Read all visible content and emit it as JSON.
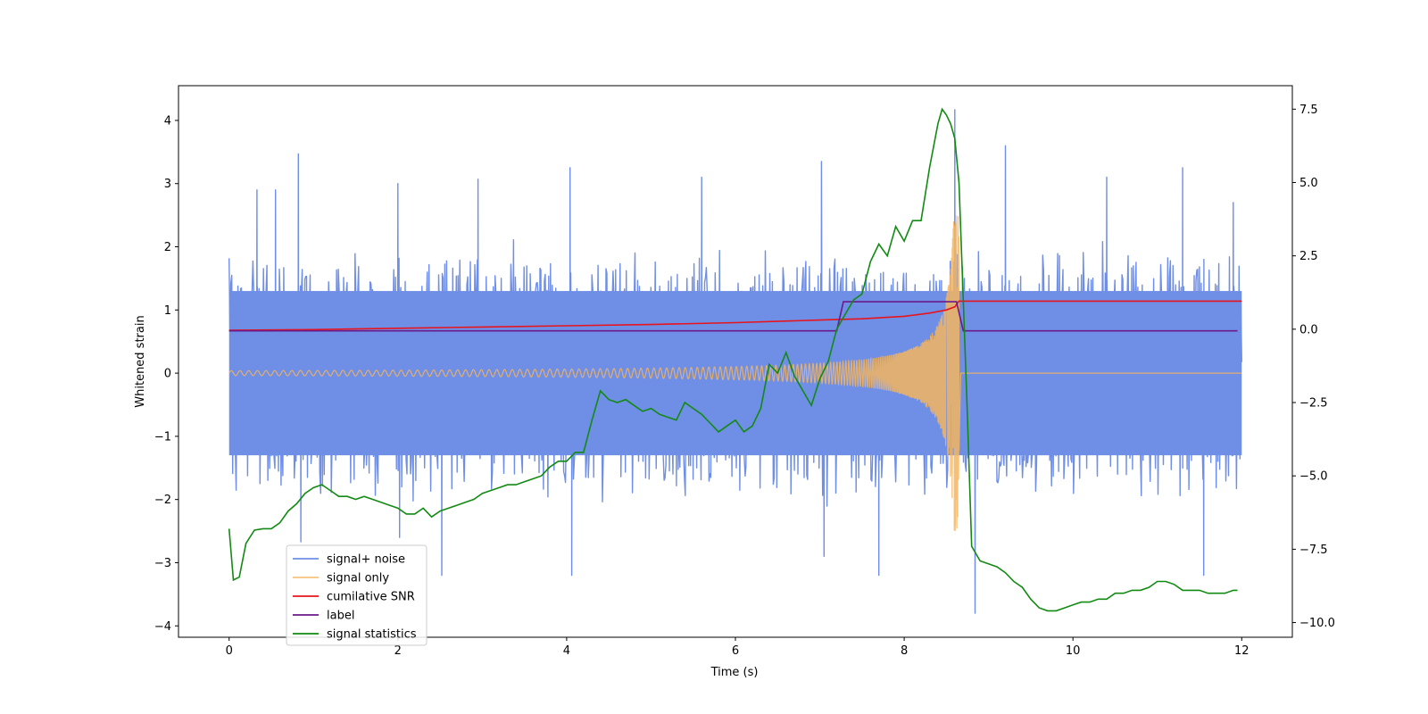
{
  "chart_data": {
    "type": "line",
    "title": "",
    "xlabel": "Time (s)",
    "ylabel": "Whitened strain",
    "ylabel_right": "",
    "xlim": [
      -0.6,
      12.6
    ],
    "ylim": [
      -4.18,
      4.55
    ],
    "ylim_right": [
      -10.5,
      8.3
    ],
    "x_ticks": [
      0,
      2,
      4,
      6,
      8,
      10,
      12
    ],
    "x_tick_labels": [
      "0",
      "2",
      "4",
      "6",
      "8",
      "10",
      "12"
    ],
    "y_ticks": [
      -4,
      -3,
      -2,
      -1,
      0,
      1,
      2,
      3,
      4
    ],
    "y_tick_labels": [
      "−4",
      "−3",
      "−2",
      "−1",
      "0",
      "1",
      "2",
      "3",
      "4"
    ],
    "y_ticks_right": [
      -10,
      -7.5,
      -5,
      -2.5,
      0,
      2.5,
      5,
      7.5
    ],
    "y_tick_labels_right": [
      "−10.0",
      "−7.5",
      "−5.0",
      "−2.5",
      "0.0",
      "2.5",
      "5.0",
      "7.5"
    ],
    "legend_position": "lower-left",
    "series": [
      {
        "name": "signal+ noise",
        "color": "#6f8ee6",
        "axis": "left",
        "description": "whitened strain noise spanning roughly -2.5 to 3.5 over 0-12 s, peaks near 4.2 at t=8.6",
        "x_range": [
          0,
          12
        ],
        "noise_band": [
          -1.3,
          1.3
        ],
        "spikes": [
          {
            "x": 0.33,
            "y": 2.9
          },
          {
            "x": 0.55,
            "y": 2.9
          },
          {
            "x": 0.82,
            "y": 3.47
          },
          {
            "x": 0.85,
            "y": -2.67
          },
          {
            "x": 2.0,
            "y": 3.0
          },
          {
            "x": 2.02,
            "y": -2.6
          },
          {
            "x": 2.52,
            "y": -3.2
          },
          {
            "x": 2.95,
            "y": 3.07
          },
          {
            "x": 4.04,
            "y": 3.25
          },
          {
            "x": 4.06,
            "y": -3.2
          },
          {
            "x": 5.6,
            "y": 3.1
          },
          {
            "x": 7.02,
            "y": 3.35
          },
          {
            "x": 7.05,
            "y": -2.9
          },
          {
            "x": 7.7,
            "y": -3.2
          },
          {
            "x": 8.6,
            "y": 4.17
          },
          {
            "x": 8.84,
            "y": -3.8
          },
          {
            "x": 9.2,
            "y": 3.6
          },
          {
            "x": 10.4,
            "y": 3.1
          },
          {
            "x": 11.3,
            "y": 3.25
          },
          {
            "x": 11.55,
            "y": -3.2
          },
          {
            "x": 11.9,
            "y": 2.7
          }
        ]
      },
      {
        "name": "signal only",
        "color": "#f5b55e",
        "axis": "left",
        "description": "chirp oscillation with amplitude growing from 0.04 at t=0 to about 2.5 near merger at t=8.65, zero afterwards",
        "x_range": [
          0,
          12
        ],
        "merger_time": 8.65
      },
      {
        "name": "cumilative SNR",
        "color": "#e8141c",
        "axis": "left",
        "x": [
          0,
          1,
          2,
          3,
          4,
          5,
          6,
          7,
          7.5,
          8,
          8.3,
          8.5,
          8.6,
          8.65,
          12
        ],
        "y": [
          0.68,
          0.69,
          0.71,
          0.73,
          0.75,
          0.77,
          0.8,
          0.84,
          0.86,
          0.9,
          0.95,
          1.0,
          1.05,
          1.14,
          1.14
        ]
      },
      {
        "name": "label",
        "color": "#6a1a8a",
        "axis": "left",
        "x": [
          0,
          7.2,
          7.28,
          8.62,
          8.7,
          11.95
        ],
        "y": [
          0.67,
          0.67,
          1.13,
          1.13,
          0.67,
          0.67
        ]
      },
      {
        "name": "signal statistics",
        "color": "#138a13",
        "axis": "right",
        "x": [
          0,
          0.05,
          0.12,
          0.2,
          0.3,
          0.4,
          0.5,
          0.6,
          0.7,
          0.8,
          0.9,
          1.0,
          1.1,
          1.2,
          1.3,
          1.4,
          1.5,
          1.6,
          1.7,
          1.8,
          1.9,
          2.0,
          2.1,
          2.2,
          2.3,
          2.4,
          2.5,
          2.6,
          2.7,
          2.8,
          2.9,
          3.0,
          3.1,
          3.2,
          3.3,
          3.4,
          3.5,
          3.6,
          3.7,
          3.8,
          3.9,
          4.0,
          4.1,
          4.2,
          4.3,
          4.4,
          4.5,
          4.6,
          4.7,
          4.8,
          4.9,
          5.0,
          5.1,
          5.2,
          5.3,
          5.4,
          5.5,
          5.6,
          5.7,
          5.8,
          5.9,
          6.0,
          6.1,
          6.2,
          6.3,
          6.4,
          6.5,
          6.6,
          6.7,
          6.8,
          6.9,
          7.0,
          7.1,
          7.2,
          7.3,
          7.4,
          7.5,
          7.6,
          7.7,
          7.8,
          7.9,
          8.0,
          8.1,
          8.2,
          8.3,
          8.4,
          8.45,
          8.5,
          8.55,
          8.6,
          8.65,
          8.7,
          8.75,
          8.8,
          8.9,
          9.0,
          9.1,
          9.2,
          9.3,
          9.4,
          9.5,
          9.6,
          9.7,
          9.8,
          9.9,
          10.0,
          10.1,
          10.2,
          10.3,
          10.4,
          10.5,
          10.6,
          10.7,
          10.8,
          10.9,
          11.0,
          11.1,
          11.2,
          11.3,
          11.4,
          11.5,
          11.6,
          11.7,
          11.8,
          11.9,
          11.95
        ],
        "y": [
          -6.8,
          -8.55,
          -8.45,
          -7.3,
          -6.85,
          -6.8,
          -6.8,
          -6.6,
          -6.2,
          -5.95,
          -5.6,
          -5.4,
          -5.3,
          -5.5,
          -5.7,
          -5.7,
          -5.8,
          -5.7,
          -5.8,
          -5.9,
          -6.0,
          -6.1,
          -6.3,
          -6.3,
          -6.1,
          -6.4,
          -6.2,
          -6.1,
          -6.0,
          -5.9,
          -5.8,
          -5.6,
          -5.5,
          -5.4,
          -5.3,
          -5.3,
          -5.2,
          -5.1,
          -5.0,
          -4.7,
          -4.5,
          -4.5,
          -4.2,
          -4.2,
          -3.1,
          -2.1,
          -2.4,
          -2.5,
          -2.4,
          -2.6,
          -2.8,
          -2.7,
          -2.9,
          -3.0,
          -3.1,
          -2.5,
          -2.7,
          -2.9,
          -3.2,
          -3.5,
          -3.3,
          -3.1,
          -3.5,
          -3.3,
          -2.7,
          -1.2,
          -1.5,
          -0.8,
          -1.6,
          -2.1,
          -2.6,
          -1.7,
          -1.1,
          0.0,
          0.5,
          1.0,
          1.2,
          2.3,
          2.9,
          2.5,
          3.5,
          3.0,
          3.7,
          3.7,
          5.5,
          7.0,
          7.5,
          7.3,
          7.0,
          6.5,
          5.0,
          1.0,
          -3.0,
          -7.4,
          -7.9,
          -8.0,
          -8.1,
          -8.3,
          -8.6,
          -8.8,
          -9.2,
          -9.5,
          -9.6,
          -9.6,
          -9.5,
          -9.4,
          -9.3,
          -9.3,
          -9.2,
          -9.2,
          -9.0,
          -9.0,
          -8.9,
          -8.9,
          -8.8,
          -8.6,
          -8.6,
          -8.7,
          -8.9,
          -8.9,
          -8.9,
          -9.0,
          -9.0,
          -9.0,
          -8.9,
          -8.9
        ]
      }
    ]
  }
}
